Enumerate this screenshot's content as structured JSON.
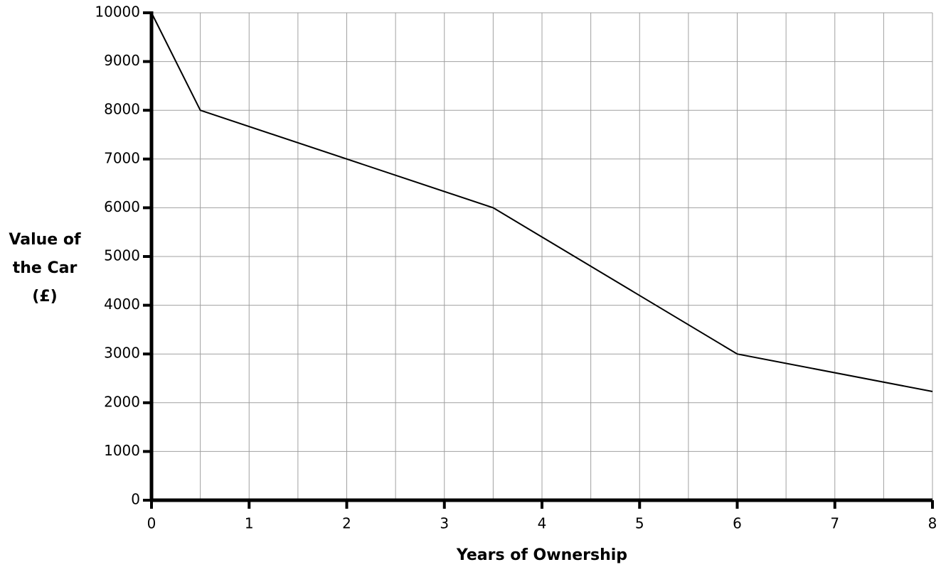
{
  "chart_data": {
    "type": "line",
    "xlabel": "Years of Ownership",
    "ylabel": [
      "Value of",
      "the Car",
      "(£)"
    ],
    "x": [
      0,
      0.5,
      3.5,
      6,
      8
    ],
    "series": [
      {
        "color": "#000000",
        "values": [
          10000,
          8000,
          6000,
          3000,
          2230
        ]
      }
    ],
    "xlim": [
      0,
      8
    ],
    "xticks": [
      0,
      1,
      2,
      3,
      4,
      5,
      6,
      7,
      8
    ],
    "ylim": [
      0,
      10000
    ],
    "yticks": [
      0,
      1000,
      2000,
      3000,
      4000,
      5000,
      6000,
      7000,
      8000,
      9000,
      10000
    ],
    "grid": true
  }
}
